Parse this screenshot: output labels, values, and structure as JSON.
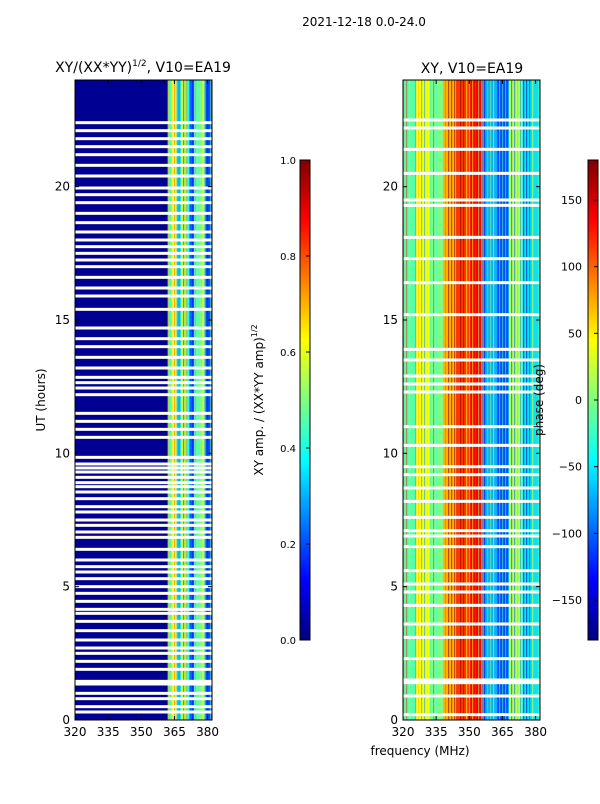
{
  "suptitle": "2021-12-18 0.0-24.0",
  "shared_xlabel": "frequency (MHz)",
  "colors": {
    "jet": [
      "#00007f",
      "#0000ff",
      "#007fff",
      "#00ffff",
      "#7fff7f",
      "#ffff00",
      "#ff7f00",
      "#ff0000",
      "#7f0000"
    ],
    "gap": "#ffffff",
    "axis": "#000000"
  },
  "chart_data": [
    {
      "type": "heatmap",
      "title_main": "XY/(XX*YY)",
      "title_sup": "1/2",
      "title_tail": ", V10=EA19",
      "ylabel": "UT (hours)",
      "xlim": [
        320,
        382
      ],
      "ylim": [
        0,
        24
      ],
      "xticks": [
        320,
        335,
        350,
        365,
        380
      ],
      "yticks": [
        0,
        5,
        10,
        15,
        20
      ],
      "colorbar": {
        "label_main": "XY amp. / (XX*YY amp)",
        "label_sup": "1/2",
        "range": [
          0.0,
          1.0
        ],
        "ticks": [
          "0.0",
          "0.2",
          "0.4",
          "0.6",
          "0.8",
          "1.0"
        ],
        "tick_values": [
          0.0,
          0.2,
          0.4,
          0.6,
          0.8,
          1.0
        ]
      },
      "flagged_hours": [
        0.3,
        0.5,
        0.8,
        1.0,
        1.35,
        1.45,
        1.9,
        2.2,
        2.5,
        2.7,
        3.0,
        3.35,
        3.7,
        4.0,
        4.15,
        4.45,
        4.75,
        5.0,
        5.3,
        5.55,
        5.75,
        6.0,
        6.4,
        6.85,
        7.05,
        7.3,
        7.5,
        7.8,
        8.0,
        8.3,
        8.55,
        8.75,
        8.9,
        9.1,
        9.3,
        9.45,
        9.6,
        9.85,
        10.6,
        10.9,
        11.2,
        11.5,
        12.2,
        12.45,
        12.65,
        12.85,
        13.2,
        13.6,
        14.0,
        14.3,
        14.7,
        15.4,
        15.9,
        16.2,
        16.6,
        17.0,
        17.25,
        17.5,
        17.75,
        18.0,
        18.3,
        18.65,
        19.0,
        19.4,
        19.7,
        19.95,
        20.4,
        20.8,
        21.2,
        21.5,
        21.8,
        22.1,
        22.4
      ],
      "bands": [
        {
          "from": 320,
          "to": 362,
          "level": 0.02
        },
        {
          "from": 362,
          "to": 364,
          "level": 0.45
        },
        {
          "from": 364,
          "to": 366,
          "level": 0.62
        },
        {
          "from": 366,
          "to": 368,
          "level": 0.3
        },
        {
          "from": 368,
          "to": 370,
          "level": 0.55
        },
        {
          "from": 370,
          "to": 372,
          "level": 0.4
        },
        {
          "from": 372,
          "to": 374,
          "level": 0.22
        },
        {
          "from": 374,
          "to": 377,
          "level": 0.48
        },
        {
          "from": 377,
          "to": 379,
          "level": 0.58
        },
        {
          "from": 379,
          "to": 382,
          "level": 0.2
        }
      ]
    },
    {
      "type": "heatmap",
      "title_main": "XY, V10=EA19",
      "title_sup": "",
      "title_tail": "",
      "ylabel": "",
      "xlim": [
        320,
        382
      ],
      "ylim": [
        0,
        24
      ],
      "xticks": [
        320,
        335,
        350,
        365,
        380
      ],
      "yticks": [
        0,
        5,
        10,
        15,
        20
      ],
      "colorbar": {
        "label_main": "phase (deg)",
        "label_sup": "",
        "range": [
          -180,
          180
        ],
        "ticks": [
          "−150",
          "−100",
          "−50",
          "0",
          "50",
          "100",
          "150"
        ],
        "tick_values": [
          -150,
          -100,
          -50,
          0,
          50,
          100,
          150
        ]
      },
      "flagged_hours": [
        0.2,
        0.9,
        1.4,
        1.5,
        2.3,
        3.1,
        3.6,
        4.3,
        4.8,
        5.1,
        5.6,
        6.5,
        6.9,
        7.1,
        7.6,
        8.2,
        8.7,
        9.2,
        9.5,
        10.3,
        11.0,
        12.3,
        12.6,
        12.9,
        13.5,
        13.9,
        15.2,
        16.4,
        17.3,
        18.1,
        19.3,
        19.5,
        20.5,
        21.4,
        22.2,
        22.5
      ],
      "bands": [
        {
          "from": 320,
          "to": 326,
          "level": 0.45
        },
        {
          "from": 326,
          "to": 332,
          "level": 0.62
        },
        {
          "from": 332,
          "to": 338,
          "level": 0.5
        },
        {
          "from": 338,
          "to": 344,
          "level": 0.7
        },
        {
          "from": 344,
          "to": 350,
          "level": 0.82
        },
        {
          "from": 350,
          "to": 356,
          "level": 0.88
        },
        {
          "from": 356,
          "to": 362,
          "level": 0.3
        },
        {
          "from": 362,
          "to": 368,
          "level": 0.2
        },
        {
          "from": 368,
          "to": 374,
          "level": 0.55
        },
        {
          "from": 374,
          "to": 382,
          "level": 0.35
        }
      ]
    }
  ]
}
